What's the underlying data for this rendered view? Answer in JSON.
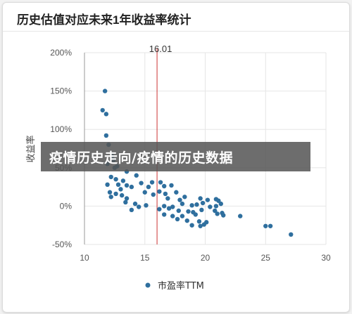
{
  "page": {
    "title": "历史估值对应未来1年收益率统计"
  },
  "banner": {
    "text": "疫情历史走向/疫情的历史数据"
  },
  "colors": {
    "point": "#2f6f9e",
    "marker": "#cc3333",
    "grid": "#e6e6e6",
    "axis": "#999999"
  },
  "chart_data": {
    "type": "scatter",
    "xlabel": "市盈率TTM",
    "ylabel": "收益率",
    "xlim": [
      10,
      30
    ],
    "ylim": [
      -50,
      200
    ],
    "xticks": [
      10,
      15,
      20,
      25,
      30
    ],
    "yticks": [
      -50,
      0,
      50,
      100,
      150,
      200
    ],
    "ytick_labels": [
      "-50%",
      "0%",
      "50%",
      "100%",
      "150%",
      "200%"
    ],
    "grid": true,
    "legend": {
      "position": "bottom",
      "entries": [
        "市盈率TTM"
      ]
    },
    "reference_line": {
      "x": 16.01,
      "label": "16.01"
    },
    "series": [
      {
        "name": "市盈率TTM",
        "points": [
          [
            11.7,
            150
          ],
          [
            11.5,
            125
          ],
          [
            11.8,
            120
          ],
          [
            11.8,
            92
          ],
          [
            12.0,
            80
          ],
          [
            12.3,
            65
          ],
          [
            12.4,
            60
          ],
          [
            11.9,
            55
          ],
          [
            12.5,
            50
          ],
          [
            12.7,
            52
          ],
          [
            13.5,
            45
          ],
          [
            14.3,
            40
          ],
          [
            12.2,
            38
          ],
          [
            12.6,
            35
          ],
          [
            13.2,
            33
          ],
          [
            14.7,
            30
          ],
          [
            15.6,
            31
          ],
          [
            16.3,
            31
          ],
          [
            11.9,
            28
          ],
          [
            12.8,
            28
          ],
          [
            13.5,
            27
          ],
          [
            13.0,
            22
          ],
          [
            13.9,
            25
          ],
          [
            15.3,
            25
          ],
          [
            16.6,
            26
          ],
          [
            17.2,
            27
          ],
          [
            12.1,
            18
          ],
          [
            12.6,
            16
          ],
          [
            12.2,
            12
          ],
          [
            13.1,
            14
          ],
          [
            13.5,
            10
          ],
          [
            15.0,
            18
          ],
          [
            15.7,
            15
          ],
          [
            16.2,
            19
          ],
          [
            16.7,
            16
          ],
          [
            17.6,
            18
          ],
          [
            18.3,
            12
          ],
          [
            16.9,
            10
          ],
          [
            17.9,
            8
          ],
          [
            19.6,
            10
          ],
          [
            20.2,
            8
          ],
          [
            20.9,
            9
          ],
          [
            21.1,
            7
          ],
          [
            13.4,
            5
          ],
          [
            14.2,
            3
          ],
          [
            15.1,
            1
          ],
          [
            16.6,
            0
          ],
          [
            17.3,
            -1
          ],
          [
            18.1,
            3
          ],
          [
            18.9,
            1
          ],
          [
            19.3,
            2
          ],
          [
            19.8,
            4
          ],
          [
            20.4,
            -1
          ],
          [
            20.9,
            0
          ],
          [
            21.3,
            3
          ],
          [
            13.9,
            -5
          ],
          [
            14.5,
            -1
          ],
          [
            16.2,
            -4
          ],
          [
            17.0,
            -3
          ],
          [
            17.8,
            -6
          ],
          [
            18.6,
            -7
          ],
          [
            19.0,
            -8
          ],
          [
            19.7,
            -5
          ],
          [
            20.8,
            -6
          ],
          [
            21.4,
            -9
          ],
          [
            16.6,
            -11
          ],
          [
            17.3,
            -13
          ],
          [
            18.1,
            -13
          ],
          [
            19.2,
            -11
          ],
          [
            21.0,
            -10
          ],
          [
            21.5,
            -12
          ],
          [
            17.7,
            -17
          ],
          [
            18.5,
            -19
          ],
          [
            19.5,
            -20
          ],
          [
            20.1,
            -21
          ],
          [
            22.9,
            -13
          ],
          [
            18.9,
            -25
          ],
          [
            19.6,
            -26
          ],
          [
            19.9,
            -24
          ],
          [
            25.0,
            -26
          ],
          [
            25.4,
            -26
          ],
          [
            27.1,
            -37
          ]
        ]
      }
    ]
  }
}
